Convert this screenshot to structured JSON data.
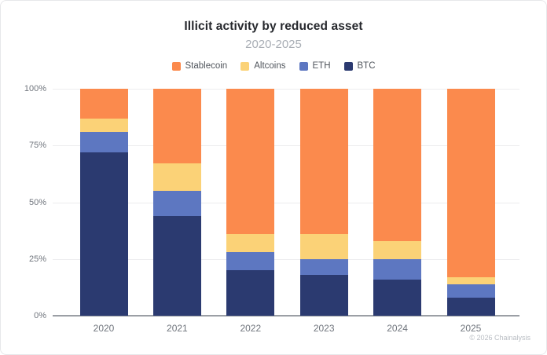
{
  "header": {
    "title": "Illicit activity by reduced asset",
    "subtitle": "2020-2025"
  },
  "footer": {
    "copyright": "© 2026 Chainalysis"
  },
  "chart_data": {
    "type": "bar",
    "stacked": true,
    "normalized": true,
    "unit": "%",
    "title": "Illicit activity by reduced asset",
    "subtitle": "2020-2025",
    "categories": [
      "2020",
      "2021",
      "2022",
      "2023",
      "2024",
      "2025"
    ],
    "series": [
      {
        "name": "BTC",
        "color": "#2b3a70",
        "values": [
          72,
          44,
          20,
          18,
          16,
          8
        ]
      },
      {
        "name": "ETH",
        "color": "#5d77c1",
        "values": [
          9,
          11,
          8,
          7,
          9,
          6
        ]
      },
      {
        "name": "Altcoins",
        "color": "#fbd277",
        "values": [
          6,
          12,
          8,
          11,
          8,
          3
        ]
      },
      {
        "name": "Stablecoin",
        "color": "#fb8a4d",
        "values": [
          13,
          33,
          64,
          64,
          67,
          83
        ]
      }
    ],
    "legend": {
      "position": "top",
      "order": [
        "Stablecoin",
        "Altcoins",
        "ETH",
        "BTC"
      ]
    },
    "y_axis": {
      "range": [
        0,
        100
      ],
      "ticks": [
        0,
        25,
        50,
        75,
        100
      ],
      "tick_labels": [
        "0%",
        "25%",
        "50%",
        "75%",
        "100%"
      ],
      "grid": true
    },
    "x_axis": {
      "tick_labels": [
        "2020",
        "2021",
        "2022",
        "2023",
        "2024",
        "2025"
      ]
    }
  }
}
